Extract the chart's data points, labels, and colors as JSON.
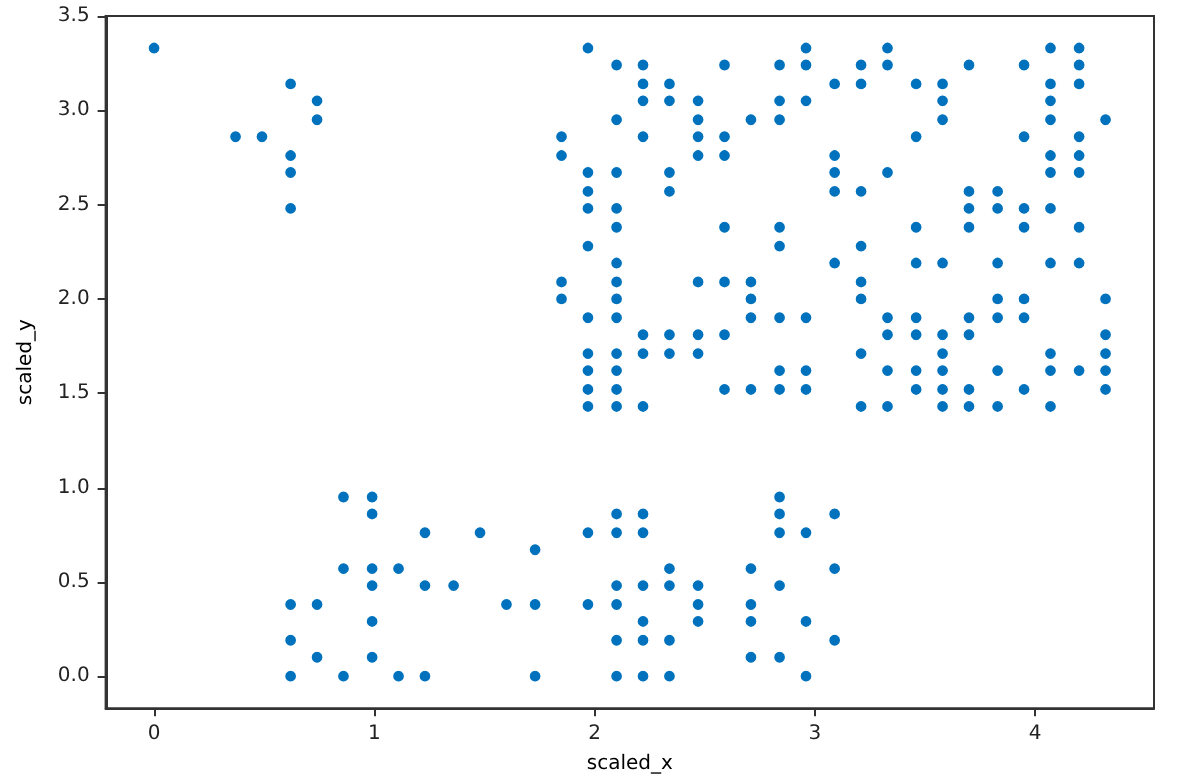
{
  "chart_data": {
    "type": "scatter",
    "xlabel": "scaled_x",
    "ylabel": "scaled_y",
    "color": "#0072bd",
    "marker": "circle",
    "grid": false,
    "xlim": [
      -0.22,
      4.54
    ],
    "xticks": [
      0,
      1,
      2,
      3,
      4
    ],
    "ylim": [
      -0.17,
      3.5
    ],
    "yticks": [
      {
        "value": 0,
        "label": "0.0"
      },
      0.5,
      {
        "value": 1,
        "label": "1.0"
      },
      1.5,
      {
        "value": 2,
        "label": "2.0"
      },
      2.5,
      {
        "value": 3,
        "label": "3.0"
      },
      3.5
    ],
    "x": [
      0,
      1.97,
      2.96,
      3.33,
      4.07,
      4.2,
      2.1,
      2.22,
      2.59,
      2.84,
      2.96,
      3.21,
      3.33,
      3.7,
      3.95,
      4.2,
      0.62,
      2.22,
      2.34,
      3.09,
      3.21,
      3.46,
      3.58,
      4.07,
      4.2,
      0.74,
      2.22,
      2.34,
      2.47,
      2.84,
      2.96,
      3.58,
      4.07,
      0.74,
      2.1,
      2.47,
      2.71,
      2.84,
      3.58,
      4.07,
      4.32,
      0.37,
      0.49,
      1.85,
      2.22,
      2.47,
      2.59,
      3.46,
      3.95,
      4.2,
      0.62,
      1.85,
      2.47,
      2.59,
      3.09,
      4.07,
      4.2,
      0.62,
      1.97,
      2.1,
      2.34,
      3.09,
      3.33,
      4.07,
      4.2,
      1.97,
      2.34,
      3.09,
      3.21,
      3.7,
      3.83,
      0.62,
      1.97,
      2.1,
      3.7,
      3.83,
      3.95,
      4.07,
      2.1,
      2.59,
      2.84,
      3.46,
      3.7,
      3.95,
      4.2,
      1.97,
      2.84,
      3.21,
      2.1,
      3.09,
      3.46,
      3.58,
      3.83,
      4.07,
      4.2,
      1.85,
      2.1,
      2.47,
      2.59,
      2.71,
      3.21,
      1.85,
      2.1,
      2.71,
      3.21,
      3.83,
      3.95,
      4.32,
      1.97,
      2.1,
      2.71,
      2.84,
      2.96,
      3.33,
      3.46,
      3.7,
      3.83,
      3.95,
      2.22,
      2.34,
      2.47,
      2.59,
      3.33,
      3.46,
      3.58,
      3.7,
      4.32,
      1.97,
      2.1,
      2.22,
      2.34,
      2.47,
      3.21,
      3.58,
      4.07,
      4.32,
      1.97,
      2.1,
      2.84,
      2.96,
      3.33,
      3.46,
      3.58,
      3.83,
      4.07,
      4.2,
      4.32,
      1.97,
      2.1,
      2.59,
      2.71,
      2.84,
      2.96,
      3.46,
      3.58,
      3.7,
      3.95,
      4.32,
      1.97,
      2.1,
      2.22,
      3.21,
      3.33,
      3.58,
      3.7,
      3.83,
      4.07,
      0.86,
      0.99,
      2.84,
      0.99,
      2.1,
      2.22,
      2.84,
      3.09,
      1.23,
      1.48,
      1.97,
      2.1,
      2.22,
      2.84,
      2.96,
      1.73,
      0.86,
      0.99,
      1.11,
      2.34,
      2.71,
      3.09,
      0.99,
      1.23,
      1.36,
      2.1,
      2.22,
      2.34,
      2.47,
      2.84,
      0.62,
      0.74,
      1.6,
      1.73,
      1.97,
      2.1,
      2.47,
      2.71,
      0.99,
      2.22,
      2.47,
      2.71,
      2.96,
      0.62,
      2.1,
      2.22,
      2.34,
      3.09,
      0.74,
      0.99,
      2.71,
      2.84,
      0.62,
      0.86,
      1.11,
      1.23,
      1.73,
      2.1,
      2.22,
      2.34,
      2.96
    ],
    "values": [
      3.33,
      3.33,
      3.33,
      3.33,
      3.33,
      3.33,
      3.24,
      3.24,
      3.24,
      3.24,
      3.24,
      3.24,
      3.24,
      3.24,
      3.24,
      3.24,
      3.14,
      3.14,
      3.14,
      3.14,
      3.14,
      3.14,
      3.14,
      3.14,
      3.14,
      3.05,
      3.05,
      3.05,
      3.05,
      3.05,
      3.05,
      3.05,
      3.05,
      2.95,
      2.95,
      2.95,
      2.95,
      2.95,
      2.95,
      2.95,
      2.95,
      2.86,
      2.86,
      2.86,
      2.86,
      2.86,
      2.86,
      2.86,
      2.86,
      2.86,
      2.76,
      2.76,
      2.76,
      2.76,
      2.76,
      2.76,
      2.76,
      2.67,
      2.67,
      2.67,
      2.67,
      2.67,
      2.67,
      2.67,
      2.67,
      2.57,
      2.57,
      2.57,
      2.57,
      2.57,
      2.57,
      2.48,
      2.48,
      2.48,
      2.48,
      2.48,
      2.48,
      2.48,
      2.38,
      2.38,
      2.38,
      2.38,
      2.38,
      2.38,
      2.38,
      2.28,
      2.28,
      2.28,
      2.19,
      2.19,
      2.19,
      2.19,
      2.19,
      2.19,
      2.19,
      2.09,
      2.09,
      2.09,
      2.09,
      2.09,
      2.09,
      2.0,
      2.0,
      2.0,
      2.0,
      2.0,
      2.0,
      2.0,
      1.9,
      1.9,
      1.9,
      1.9,
      1.9,
      1.9,
      1.9,
      1.9,
      1.9,
      1.9,
      1.81,
      1.81,
      1.81,
      1.81,
      1.81,
      1.81,
      1.81,
      1.81,
      1.81,
      1.71,
      1.71,
      1.71,
      1.71,
      1.71,
      1.71,
      1.71,
      1.71,
      1.71,
      1.62,
      1.62,
      1.62,
      1.62,
      1.62,
      1.62,
      1.62,
      1.62,
      1.62,
      1.62,
      1.62,
      1.52,
      1.52,
      1.52,
      1.52,
      1.52,
      1.52,
      1.52,
      1.52,
      1.52,
      1.52,
      1.52,
      1.43,
      1.43,
      1.43,
      1.43,
      1.43,
      1.43,
      1.43,
      1.43,
      1.43,
      0.95,
      0.95,
      0.95,
      0.86,
      0.86,
      0.86,
      0.86,
      0.86,
      0.76,
      0.76,
      0.76,
      0.76,
      0.76,
      0.76,
      0.76,
      0.67,
      0.57,
      0.57,
      0.57,
      0.57,
      0.57,
      0.57,
      0.48,
      0.48,
      0.48,
      0.48,
      0.48,
      0.48,
      0.48,
      0.48,
      0.38,
      0.38,
      0.38,
      0.38,
      0.38,
      0.38,
      0.38,
      0.38,
      0.29,
      0.29,
      0.29,
      0.29,
      0.29,
      0.19,
      0.19,
      0.19,
      0.19,
      0.19,
      0.1,
      0.1,
      0.1,
      0.1,
      0,
      0,
      0,
      0,
      0,
      0,
      0,
      0,
      0
    ]
  }
}
